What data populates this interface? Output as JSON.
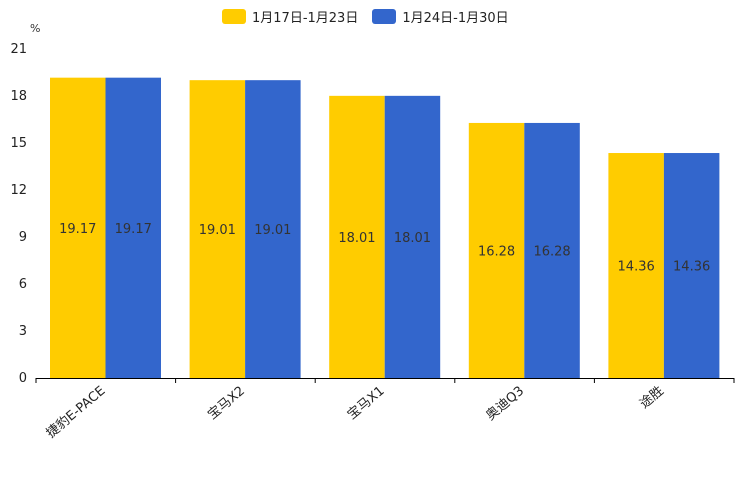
{
  "chart_data": {
    "type": "bar",
    "title": "",
    "unit": "%",
    "xlabel": "",
    "ylabel": "",
    "ylim": [
      0,
      21
    ],
    "yticks": [
      0,
      3,
      6,
      9,
      12,
      15,
      18,
      21
    ],
    "categories": [
      "捷豹E-PACE",
      "宝马X2",
      "宝马X1",
      "奥迪Q3",
      "途胜"
    ],
    "series": [
      {
        "name": "1月17日-1月23日",
        "color": "#FFCC00",
        "values": [
          19.17,
          19.01,
          18.01,
          16.28,
          14.36
        ]
      },
      {
        "name": "1月24日-1月30日",
        "color": "#3366CC",
        "values": [
          19.17,
          19.01,
          18.01,
          16.28,
          14.36
        ]
      }
    ],
    "legend_position": "top-center",
    "grid": false
  }
}
